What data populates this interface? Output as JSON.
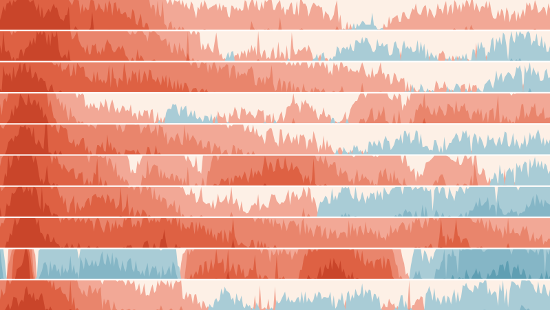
{
  "chart_data": {
    "type": "horizon",
    "title": "",
    "xlabel": "",
    "ylabel": "",
    "bands": 3,
    "colors": {
      "background": "#fdf0e6",
      "positive": [
        "#f2a896",
        "#e9856c",
        "#de6143",
        "#c9452a"
      ],
      "negative": [
        "#a9ccd6",
        "#85b6c6",
        "#5f9fb3",
        "#3f879e"
      ]
    },
    "series": [
      {
        "values": [
          3.6,
          3.9,
          4.2,
          3.5,
          3.8,
          3.2,
          2.7,
          2.9,
          2.8,
          2.6,
          2.4,
          2.2,
          1.2,
          1.0,
          0.9,
          0.8,
          0.7,
          0.6,
          0.8,
          0.9,
          0.9,
          0.7,
          0.7,
          0.9,
          0.6,
          0.4,
          0.1,
          -0.4,
          -0.3,
          0.3,
          0.5,
          0.7,
          0.6,
          0.7,
          0.8,
          0.9,
          0.8,
          0.6,
          0.5,
          0.6,
          0.8,
          0.7
        ]
      },
      {
        "values": [
          3.3,
          3.1,
          3.4,
          3.9,
          3.7,
          3.1,
          2.6,
          2.4,
          2.5,
          2.3,
          2.1,
          1.9,
          1.7,
          1.5,
          1.3,
          0.6,
          0.5,
          -0.3,
          0.2,
          0.4,
          0.3,
          0.1,
          0.2,
          0.3,
          0.0,
          -0.4,
          -0.5,
          -0.6,
          -0.5,
          -0.4,
          -0.6,
          -0.5,
          -0.2,
          0.1,
          0.0,
          -0.2,
          -0.4,
          -0.6,
          -0.8,
          -0.9,
          -0.7,
          -0.5
        ]
      },
      {
        "values": [
          3.2,
          3.6,
          3.9,
          3.4,
          3.1,
          2.8,
          2.7,
          2.5,
          2.4,
          2.3,
          2.5,
          2.6,
          2.4,
          2.2,
          2.1,
          1.9,
          1.8,
          1.7,
          1.6,
          1.5,
          1.4,
          1.2,
          1.1,
          1.0,
          0.9,
          0.8,
          0.9,
          0.7,
          0.6,
          0.5,
          0.3,
          -0.1,
          0.1,
          0.2,
          -0.2,
          0.2,
          0.0,
          -0.5,
          -0.6,
          -0.7,
          -0.6,
          -0.5
        ]
      },
      {
        "values": [
          2.4,
          3.4,
          3.8,
          3.6,
          2.2,
          1.4,
          0.9,
          0.6,
          0.5,
          0.6,
          0.3,
          0.4,
          0.1,
          -0.5,
          -0.4,
          -0.3,
          -0.1,
          0.2,
          0.4,
          0.3,
          0.1,
          0.2,
          0.5,
          0.6,
          0.3,
          0.0,
          0.2,
          1.2,
          1.3,
          1.1,
          0.6,
          1.4,
          1.5,
          1.3,
          1.6,
          1.4,
          1.2,
          1.3,
          1.1,
          1.4,
          1.5,
          1.2
        ]
      },
      {
        "values": [
          3.0,
          3.5,
          4.0,
          3.4,
          3.1,
          2.6,
          2.3,
          2.1,
          2.2,
          2.0,
          1.9,
          2.0,
          1.8,
          1.6,
          1.5,
          1.3,
          1.2,
          1.1,
          1.0,
          0.9,
          0.7,
          0.6,
          0.5,
          0.4,
          0.3,
          0.1,
          -0.1,
          0.0,
          -0.4,
          -0.2,
          -0.5,
          -0.6,
          -0.4,
          -0.3,
          -0.5,
          -0.6,
          -0.4,
          -0.5,
          -0.5,
          -0.4,
          -0.6,
          -0.5
        ]
      },
      {
        "values": [
          2.8,
          3.9,
          4.4,
          3.3,
          2.9,
          2.4,
          2.3,
          2.2,
          1.9,
          1.4,
          0.4,
          1.6,
          1.4,
          1.2,
          1.0,
          0.6,
          2.0,
          2.2,
          2.3,
          2.4,
          2.6,
          2.8,
          2.5,
          2.1,
          1.9,
          1.5,
          1.4,
          1.3,
          1.2,
          1.4,
          1.1,
          0.2,
          0.8,
          1.2,
          0.9,
          1.0,
          0.5,
          -0.4,
          -0.6,
          -0.7,
          -0.6,
          -0.5
        ]
      },
      {
        "values": [
          2.7,
          3.9,
          4.1,
          3.5,
          3.0,
          2.4,
          2.2,
          2.6,
          2.5,
          2.2,
          2.1,
          1.9,
          1.7,
          1.3,
          0.9,
          0.6,
          0.5,
          0.6,
          0.4,
          0.2,
          0.5,
          0.6,
          0.7,
          0.9,
          -0.4,
          -0.8,
          -0.9,
          -0.7,
          -0.6,
          -0.9,
          -1.0,
          -1.2,
          -1.1,
          -0.9,
          -0.7,
          -1.2,
          -1.5,
          -1.4,
          -1.1,
          -1.3,
          -1.6,
          -1.4
        ]
      },
      {
        "values": [
          2.8,
          3.8,
          4.3,
          3.6,
          3.2,
          3.0,
          2.9,
          2.8,
          2.7,
          2.8,
          2.9,
          3.0,
          3.1,
          2.9,
          2.7,
          2.6,
          2.5,
          2.4,
          2.2,
          2.1,
          1.9,
          1.8,
          1.7,
          1.6,
          1.5,
          1.4,
          1.6,
          1.5,
          1.4,
          1.5,
          1.6,
          1.8,
          1.9,
          2.2,
          2.4,
          2.1,
          1.8,
          1.6,
          1.4,
          1.5,
          1.4,
          1.3
        ]
      },
      {
        "values": [
          -2.2,
          2.8,
          4.2,
          -1.4,
          -1.3,
          -1.2,
          -1.5,
          -1.6,
          -1.7,
          -1.5,
          -1.4,
          -1.3,
          -1.2,
          -1.4,
          2.0,
          2.3,
          2.5,
          2.4,
          2.3,
          2.1,
          1.9,
          2.0,
          1.8,
          3.0,
          3.3,
          3.6,
          3.1,
          2.7,
          2.5,
          2.6,
          0.8,
          -1.2,
          -0.5,
          -1.8,
          -1.9,
          -2.1,
          -2.0,
          -2.3,
          -2.4,
          -2.2,
          -1.9,
          -2.1
        ]
      },
      {
        "values": [
          2.6,
          3.2,
          3.6,
          3.4,
          2.8,
          2.6,
          1.8,
          1.6,
          1.2,
          1.1,
          0.9,
          0.6,
          1.0,
          0.9,
          0.4,
          0.2,
          -0.4,
          -0.6,
          -0.3,
          -0.1,
          0.2,
          -0.5,
          -0.3,
          -0.4,
          -0.6,
          -0.2,
          -0.5,
          -0.7,
          -0.4,
          0.3,
          -0.3,
          0.4,
          -0.6,
          -0.4,
          -0.5,
          -0.7,
          -0.8,
          -0.6,
          -0.9,
          -1.0,
          -0.8,
          -0.7
        ]
      }
    ]
  }
}
